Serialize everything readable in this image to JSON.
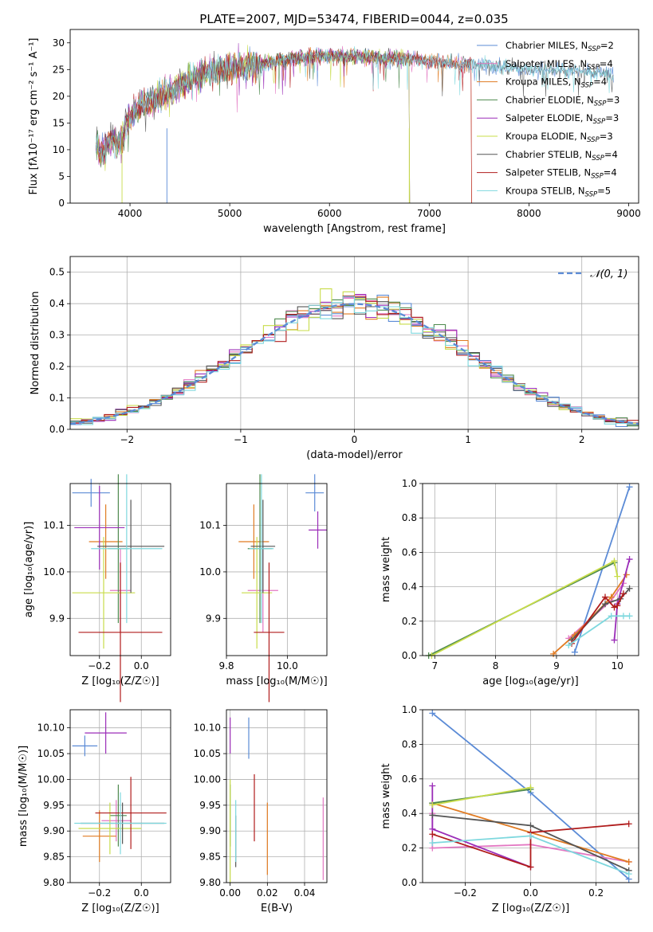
{
  "figure": {
    "title": "PLATE=2007, MJD=53474, FIBERID=0044, z=0.035"
  },
  "colors": {
    "Chabrier MILES": "#5b8bd6",
    "Salpeter MILES": "#e377c2",
    "Kroupa MILES": "#e07b22",
    "Chabrier ELODIE": "#4e8a4e",
    "Salpeter ELODIE": "#9b2db8",
    "Kroupa ELODIE": "#c8dc4a",
    "Chabrier STELIB": "#555555",
    "Salpeter STELIB": "#b01c1c",
    "Kroupa STELIB": "#7ed8de",
    "normal": "#5b8bd6",
    "grid": "#b0b0b0"
  },
  "chart_data": [
    {
      "id": "spectrum",
      "type": "line",
      "title": "PLATE=2007, MJD=53474, FIBERID=0044, z=0.035",
      "xlabel": "wavelength [Angstrom, rest frame]",
      "ylabel": "Flux [fλ10⁻¹⁷ erg cm⁻² s⁻¹ A⁻¹]",
      "xlim": [
        3400,
        9100
      ],
      "ylim": [
        0,
        32.5
      ],
      "xticks": [
        4000,
        5000,
        6000,
        7000,
        8000,
        9000
      ],
      "yticks": [
        0,
        5,
        10,
        15,
        20,
        25,
        30
      ],
      "grid": false,
      "legend_position": "top-right",
      "continuum": [
        [
          3650,
          13
        ],
        [
          3700,
          9
        ],
        [
          3800,
          12
        ],
        [
          3900,
          11
        ],
        [
          3950,
          14
        ],
        [
          4000,
          16
        ],
        [
          4100,
          18
        ],
        [
          4200,
          19
        ],
        [
          4300,
          20
        ],
        [
          4500,
          22
        ],
        [
          4700,
          24
        ],
        [
          5000,
          25.5
        ],
        [
          5300,
          26
        ],
        [
          5600,
          27
        ],
        [
          5900,
          27.5
        ],
        [
          6200,
          27.5
        ],
        [
          6500,
          27.2
        ],
        [
          6800,
          27
        ],
        [
          7000,
          26.5
        ],
        [
          7300,
          26
        ],
        [
          7500,
          26
        ],
        [
          7700,
          25.5
        ],
        [
          8000,
          25
        ],
        [
          8300,
          25
        ],
        [
          8600,
          24.5
        ],
        [
          8850,
          24
        ]
      ],
      "series": [
        {
          "name": "Chabrier MILES, N$_{SSP}$=2",
          "end": 8850
        },
        {
          "name": "Salpeter MILES, N$_{SSP}$=4",
          "end": 7420
        },
        {
          "name": "Kroupa MILES, N$_{SSP}$=4",
          "end": 7420
        },
        {
          "name": "Chabrier ELODIE, N$_{SSP}$=3",
          "end": 6800
        },
        {
          "name": "Salpeter ELODIE, N$_{SSP}$=3",
          "end": 6800
        },
        {
          "name": "Kroupa ELODIE, N$_{SSP}$=3",
          "end": 6800
        },
        {
          "name": "Chabrier STELIB, N$_{SSP}$=4",
          "end": 8850
        },
        {
          "name": "Salpeter STELIB, N$_{SSP}$=4",
          "end": 7420
        },
        {
          "name": "Kroupa STELIB, N$_{SSP}$=5",
          "end": 8850
        }
      ]
    },
    {
      "id": "residuals",
      "type": "line",
      "xlabel": "(data-model)/error",
      "ylabel": "Normed distribution",
      "xlim": [
        -2.5,
        2.5
      ],
      "ylim": [
        0,
        0.55
      ],
      "xticks": [
        -2,
        -1,
        0,
        1,
        2
      ],
      "yticks": [
        0.0,
        0.1,
        0.2,
        0.3,
        0.4,
        0.5
      ],
      "grid": true,
      "legend_position": "top-right",
      "legend": [
        "𝒩(0, 1)"
      ],
      "bin_width": 0.1
    },
    {
      "id": "age-vs-Z",
      "type": "scatter",
      "xlabel": "Z [log₁₀(Z/Z☉)]",
      "ylabel": "age  [log₁₀(age/yr)]",
      "xlim": [
        -0.34,
        0.14
      ],
      "ylim": [
        9.82,
        10.19
      ],
      "xticks": [
        -0.2,
        0.0
      ],
      "yticks": [
        9.9,
        10.0,
        10.1
      ],
      "grid": true,
      "points": [
        {
          "series": "Chabrier MILES",
          "x": -0.24,
          "xerr": 0.09,
          "y": 10.17,
          "yerr": 0.03
        },
        {
          "series": "Salpeter MILES",
          "x": -0.1,
          "xerr": 0.05,
          "y": 9.96,
          "yerr": 0.09
        },
        {
          "series": "Kroupa MILES",
          "x": -0.17,
          "xerr": 0.08,
          "y": 10.065,
          "yerr": 0.08
        },
        {
          "series": "Chabrier ELODIE",
          "x": -0.11,
          "xerr": 0.05,
          "y": 10.05,
          "yerr": 0.16
        },
        {
          "series": "Salpeter ELODIE",
          "x": -0.2,
          "xerr": 0.12,
          "y": 10.095,
          "yerr": 0.09
        },
        {
          "series": "Kroupa ELODIE",
          "x": -0.18,
          "xerr": 0.15,
          "y": 9.955,
          "yerr": 0.12
        },
        {
          "series": "Chabrier STELIB",
          "x": -0.05,
          "xerr": 0.16,
          "y": 10.055,
          "yerr": 0.1
        },
        {
          "series": "Salpeter STELIB",
          "x": -0.1,
          "xerr": 0.2,
          "y": 9.87,
          "yerr": 0.15
        },
        {
          "series": "Kroupa STELIB",
          "x": -0.07,
          "xerr": 0.17,
          "y": 10.05,
          "yerr": 0.16
        }
      ]
    },
    {
      "id": "age-vs-mass",
      "type": "scatter",
      "xlabel": "mass [log₁₀(M/M☉)]",
      "xlim": [
        9.8,
        10.13
      ],
      "ylim": [
        9.82,
        10.19
      ],
      "xticks": [
        9.8,
        10.0
      ],
      "yticks": [
        9.9,
        10.0,
        10.1
      ],
      "grid": true,
      "points": [
        {
          "series": "Chabrier MILES",
          "x": 10.09,
          "xerr": 0.03,
          "y": 10.17,
          "yerr": 0.04
        },
        {
          "series": "Salpeter MILES",
          "x": 9.92,
          "xerr": 0.05,
          "y": 9.96,
          "yerr": 0.09
        },
        {
          "series": "Kroupa MILES",
          "x": 9.89,
          "xerr": 0.05,
          "y": 10.065,
          "yerr": 0.08
        },
        {
          "series": "Chabrier ELODIE",
          "x": 9.91,
          "xerr": 0.04,
          "y": 10.05,
          "yerr": 0.16
        },
        {
          "series": "Salpeter ELODIE",
          "x": 10.1,
          "xerr": 0.03,
          "y": 10.09,
          "yerr": 0.04
        },
        {
          "series": "Kroupa ELODIE",
          "x": 9.9,
          "xerr": 0.05,
          "y": 9.955,
          "yerr": 0.12
        },
        {
          "series": "Chabrier STELIB",
          "x": 9.92,
          "xerr": 0.04,
          "y": 10.055,
          "yerr": 0.1
        },
        {
          "series": "Salpeter STELIB",
          "x": 9.94,
          "xerr": 0.05,
          "y": 9.87,
          "yerr": 0.15
        },
        {
          "series": "Kroupa STELIB",
          "x": 9.915,
          "xerr": 0.04,
          "y": 10.05,
          "yerr": 0.16
        }
      ]
    },
    {
      "id": "weight-vs-age",
      "type": "line",
      "xlabel": "age  [log₁₀(age/yr)]",
      "ylabel": "mass weight",
      "xlim": [
        6.8,
        10.35
      ],
      "ylim": [
        0,
        1
      ],
      "xticks": [
        7,
        8,
        9,
        10
      ],
      "yticks": [
        0.0,
        0.2,
        0.4,
        0.6,
        0.8,
        1.0
      ],
      "grid": true,
      "series": [
        {
          "name": "Chabrier MILES",
          "points": [
            [
              9.3,
              0.02
            ],
            [
              10.2,
              0.98
            ]
          ]
        },
        {
          "name": "Salpeter MILES",
          "points": [
            [
              9.2,
              0.1
            ],
            [
              9.9,
              0.32
            ],
            [
              10.1,
              0.42
            ]
          ]
        },
        {
          "name": "Kroupa MILES",
          "points": [
            [
              8.95,
              0.01
            ],
            [
              9.3,
              0.12
            ],
            [
              9.9,
              0.34
            ],
            [
              10.15,
              0.47
            ]
          ]
        },
        {
          "name": "Chabrier ELODIE",
          "points": [
            [
              6.9,
              0.0
            ],
            [
              9.95,
              0.54
            ]
          ]
        },
        {
          "name": "Salpeter ELODIE",
          "points": [
            [
              9.95,
              0.09
            ],
            [
              10.0,
              0.3
            ],
            [
              10.2,
              0.56
            ]
          ]
        },
        {
          "name": "Kroupa ELODIE",
          "points": [
            [
              6.95,
              0.0
            ],
            [
              9.95,
              0.55
            ],
            [
              10.0,
              0.46
            ]
          ]
        },
        {
          "name": "Chabrier STELIB",
          "points": [
            [
              9.25,
              0.09
            ],
            [
              9.8,
              0.3
            ],
            [
              10.05,
              0.33
            ],
            [
              10.2,
              0.39
            ]
          ]
        },
        {
          "name": "Salpeter STELIB",
          "points": [
            [
              9.25,
              0.07
            ],
            [
              9.8,
              0.34
            ],
            [
              9.95,
              0.28
            ],
            [
              10.0,
              0.29
            ],
            [
              10.1,
              0.36
            ]
          ]
        },
        {
          "name": "Kroupa STELIB",
          "points": [
            [
              9.2,
              0.06
            ],
            [
              9.9,
              0.23
            ],
            [
              10.1,
              0.23
            ],
            [
              10.2,
              0.23
            ]
          ]
        }
      ]
    },
    {
      "id": "mass-vs-Z",
      "type": "scatter",
      "xlabel": "Z [log₁₀(Z/Z☉)]",
      "ylabel": "mass [log₁₀(M/M☉)]",
      "xlim": [
        -0.34,
        0.14
      ],
      "ylim": [
        9.8,
        10.135
      ],
      "xticks": [
        -0.2,
        0.0
      ],
      "yticks": [
        9.8,
        9.85,
        9.9,
        9.95,
        10.0,
        10.05,
        10.1
      ],
      "grid": true,
      "points": [
        {
          "series": "Chabrier MILES",
          "x": -0.27,
          "xerr": 0.06,
          "y": 10.065,
          "yerr": 0.02
        },
        {
          "series": "Salpeter MILES",
          "x": -0.12,
          "xerr": 0.07,
          "y": 9.92,
          "yerr": 0.04
        },
        {
          "series": "Kroupa MILES",
          "x": -0.2,
          "xerr": 0.08,
          "y": 9.89,
          "yerr": 0.05
        },
        {
          "series": "Chabrier ELODIE",
          "x": -0.11,
          "xerr": 0.04,
          "y": 9.93,
          "yerr": 0.06
        },
        {
          "series": "Salpeter ELODIE",
          "x": -0.17,
          "xerr": 0.1,
          "y": 10.09,
          "yerr": 0.04
        },
        {
          "series": "Kroupa ELODIE",
          "x": -0.15,
          "xerr": 0.15,
          "y": 9.905,
          "yerr": 0.05
        },
        {
          "series": "Chabrier STELIB",
          "x": -0.09,
          "xerr": 0.2,
          "y": 9.915,
          "yerr": 0.04
        },
        {
          "series": "Salpeter STELIB",
          "x": -0.05,
          "xerr": 0.17,
          "y": 9.935,
          "yerr": 0.07
        },
        {
          "series": "Kroupa STELIB",
          "x": -0.1,
          "xerr": 0.22,
          "y": 9.915,
          "yerr": 0.06
        }
      ]
    },
    {
      "id": "mass-vs-ebv",
      "type": "scatter",
      "xlabel": "E(B-V)",
      "xlim": [
        -0.002,
        0.052
      ],
      "ylim": [
        9.8,
        10.135
      ],
      "xticks": [
        0.0,
        0.02,
        0.04
      ],
      "yticks": [
        9.8,
        9.85,
        9.9,
        9.95,
        10.0,
        10.05,
        10.1
      ],
      "grid": true,
      "points": [
        {
          "series": "Chabrier MILES",
          "x": 0.01,
          "xerr": 0,
          "y": 10.08,
          "yerr": 0.04
        },
        {
          "series": "Salpeter MILES",
          "x": 0.05,
          "xerr": 0,
          "y": 9.885,
          "yerr": 0.08
        },
        {
          "series": "Kroupa MILES",
          "x": 0.02,
          "xerr": 0,
          "y": 9.885,
          "yerr": 0.07
        },
        {
          "series": "Chabrier ELODIE",
          "x": 0.0,
          "xerr": 0,
          "y": 9.93,
          "yerr": 0.06
        },
        {
          "series": "Salpeter ELODIE",
          "x": 0.0,
          "xerr": 0,
          "y": 10.085,
          "yerr": 0.035
        },
        {
          "series": "Kroupa ELODIE",
          "x": 0.0,
          "xerr": 0,
          "y": 9.9,
          "yerr": 0.1
        },
        {
          "series": "Chabrier STELIB",
          "x": 0.003,
          "xerr": 0,
          "y": 9.88,
          "yerr": 0.05
        },
        {
          "series": "Salpeter STELIB",
          "x": 0.013,
          "xerr": 0,
          "y": 9.945,
          "yerr": 0.065
        },
        {
          "series": "Kroupa STELIB",
          "x": 0.003,
          "xerr": 0,
          "y": 9.9,
          "yerr": 0.06
        }
      ]
    },
    {
      "id": "weight-vs-Z",
      "type": "line",
      "xlabel": "Z [log₁₀(Z/Z☉)]",
      "ylabel": "mass weight",
      "xlim": [
        -0.33,
        0.33
      ],
      "ylim": [
        0,
        1
      ],
      "xticks": [
        -0.2,
        0.0,
        0.2
      ],
      "yticks": [
        0.0,
        0.2,
        0.4,
        0.6,
        0.8,
        1.0
      ],
      "grid": true,
      "series": [
        {
          "name": "Chabrier MILES",
          "points": [
            [
              -0.3,
              0.98
            ],
            [
              0.0,
              0.52
            ],
            [
              0.3,
              0.02
            ]
          ]
        },
        {
          "name": "Salpeter MILES",
          "points": [
            [
              -0.3,
              0.4
            ],
            [
              -0.3,
              0.2
            ],
            [
              0.0,
              0.22
            ],
            [
              0.3,
              0.12
            ]
          ]
        },
        {
          "name": "Kroupa MILES",
          "points": [
            [
              -0.3,
              0.46
            ],
            [
              0.0,
              0.29
            ],
            [
              0.3,
              0.12
            ]
          ]
        },
        {
          "name": "Chabrier ELODIE",
          "points": [
            [
              -0.3,
              0.46
            ],
            [
              0.0,
              0.54
            ]
          ]
        },
        {
          "name": "Salpeter ELODIE",
          "points": [
            [
              -0.3,
              0.56
            ],
            [
              -0.3,
              0.31
            ],
            [
              0.0,
              0.09
            ]
          ]
        },
        {
          "name": "Kroupa ELODIE",
          "points": [
            [
              -0.3,
              0.45
            ],
            [
              0.0,
              0.55
            ]
          ]
        },
        {
          "name": "Chabrier STELIB",
          "points": [
            [
              -0.3,
              0.39
            ],
            [
              0.0,
              0.33
            ],
            [
              0.3,
              0.07
            ]
          ]
        },
        {
          "name": "Salpeter STELIB",
          "points": [
            [
              -0.3,
              0.28
            ],
            [
              0.0,
              0.09
            ],
            [
              0.0,
              0.29
            ],
            [
              0.3,
              0.34
            ]
          ]
        },
        {
          "name": "Kroupa STELIB",
          "points": [
            [
              -0.3,
              0.23
            ],
            [
              0.0,
              0.27
            ],
            [
              0.3,
              0.05
            ]
          ]
        }
      ]
    }
  ]
}
